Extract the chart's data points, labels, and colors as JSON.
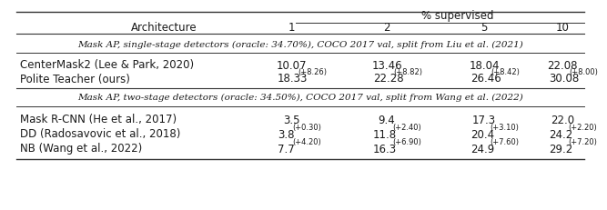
{
  "title_col": "Architecture",
  "col_headers": [
    "1",
    "2",
    "5",
    "10"
  ],
  "sup_header": "% supervised",
  "section1_label": "Mask AP, single-stage detectors (oracle: 34.70%), COCO 2017 val, split from Liu et al. (2021)",
  "section2_label": "Mask AP, two-stage detectors (oracle: 34.50%), COCO 2017 val, split from Wang et al. (2022)",
  "rows_s1": [
    {
      "name": "CenterMask2 (Lee & Park, 2020)",
      "vals": [
        "10.07",
        "13.46",
        "18.04",
        "22.08"
      ],
      "sups": [
        "",
        "",
        "",
        ""
      ]
    },
    {
      "name": "Polite Teacher (ours)",
      "vals": [
        "18.33",
        "22.28",
        "26.46",
        "30.08"
      ],
      "sups": [
        "(+8.26)",
        "(+8.82)",
        "(+8.42)",
        "(+8.00)"
      ]
    }
  ],
  "rows_s2": [
    {
      "name": "Mask R-CNN (He et al., 2017)",
      "vals": [
        "3.5",
        "9.4",
        "17.3",
        "22.0"
      ],
      "sups": [
        "",
        "",
        "",
        ""
      ]
    },
    {
      "name": "DD (Radosavovic et al., 2018)",
      "vals": [
        "3.8",
        "11.8",
        "20.4",
        "24.2"
      ],
      "sups": [
        "(+0.30)",
        "(+2.40)",
        "(+3.10)",
        "(+2.20)"
      ]
    },
    {
      "name": "NB (Wang et al., 2022)",
      "vals": [
        "7.7",
        "16.3",
        "24.9",
        "29.2"
      ],
      "sups": [
        "(+4.20)",
        "(+6.90)",
        "(+7.60)",
        "(+7.20)"
      ]
    }
  ],
  "bg_color": "#ffffff",
  "text_color": "#1a1a1a",
  "line_color": "#333333",
  "font_size_main": 8.5,
  "font_size_section": 7.5,
  "font_size_sup": 6.0
}
